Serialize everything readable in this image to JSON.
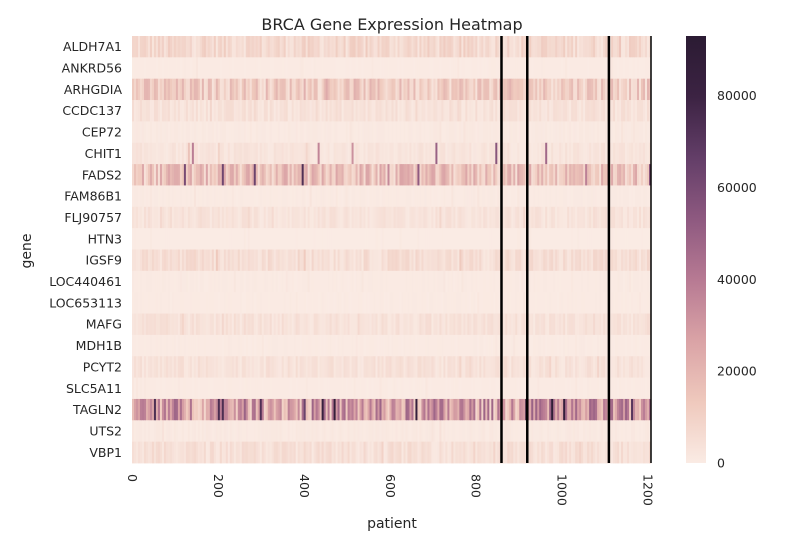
{
  "chart_data": {
    "type": "heatmap",
    "title": "BRCA Gene Expression Heatmap",
    "xlabel": "patient",
    "ylabel": "gene",
    "xlim": [
      0,
      1208
    ],
    "xticks": [
      0,
      200,
      400,
      600,
      800,
      1000,
      1200
    ],
    "genes": [
      "ALDH7A1",
      "ANKRD56",
      "ARHGDIA",
      "CCDC137",
      "CEP72",
      "CHIT1",
      "FADS2",
      "FAM86B1",
      "FLJ90757",
      "HTN3",
      "IGSF9",
      "LOC440461",
      "LOC653113",
      "MAFG",
      "MDH1B",
      "PCYT2",
      "SLC5A11",
      "TAGLN2",
      "UTS2",
      "VBP1"
    ],
    "row_mean_expression": [
      7000,
      300,
      12000,
      3500,
      800,
      2500,
      15000,
      500,
      3000,
      100,
      5000,
      500,
      400,
      3500,
      400,
      3500,
      300,
      28000,
      1000,
      4500
    ],
    "row_max_expression": [
      16000,
      2000,
      25000,
      9000,
      3000,
      60000,
      88000,
      3000,
      9000,
      1000,
      14000,
      2000,
      2000,
      9000,
      2000,
      9000,
      2000,
      92000,
      4000,
      10000
    ],
    "separator_patients": [
      860,
      920,
      1110,
      1208
    ],
    "colorbar": {
      "min": 0,
      "max": 93000,
      "ticks": [
        0,
        20000,
        40000,
        60000,
        80000
      ],
      "tick_labels": [
        "0",
        "20000",
        "40000",
        "60000",
        "80000"
      ],
      "colors": [
        "#faebe4",
        "#efc9bd",
        "#daa3a6",
        "#b77a93",
        "#8e5980",
        "#633e68",
        "#3c2343",
        "#2b1b33"
      ]
    },
    "grid": false,
    "legend": "colorbar-right"
  }
}
